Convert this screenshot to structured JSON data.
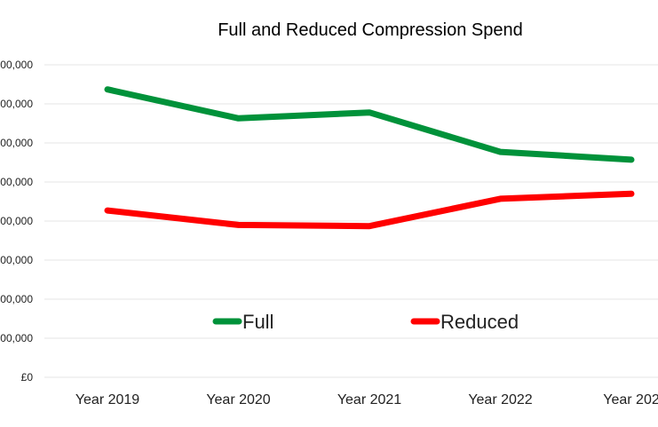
{
  "chart_data": {
    "type": "line",
    "title": "Full and Reduced Compression Spend",
    "xlabel": "",
    "ylabel": "",
    "categories": [
      "Year 2019",
      "Year 2020",
      "Year 2021",
      "Year 2022",
      "Year 202"
    ],
    "y_tick_labels": [
      "£0",
      "00,000",
      "00,000",
      "00,000",
      "00,000",
      "00,000",
      "00,000",
      "00,000",
      "00,000"
    ],
    "ylim": [
      0,
      8
    ],
    "grid": true,
    "legend_position": "inside-lower-center",
    "series": [
      {
        "name": "Full",
        "color": "#00923a",
        "values": [
          7.37,
          6.63,
          6.78,
          5.77,
          5.57
        ]
      },
      {
        "name": "Reduced",
        "color": "#ff0000",
        "values": [
          4.27,
          3.9,
          3.87,
          4.57,
          4.7
        ]
      }
    ]
  }
}
